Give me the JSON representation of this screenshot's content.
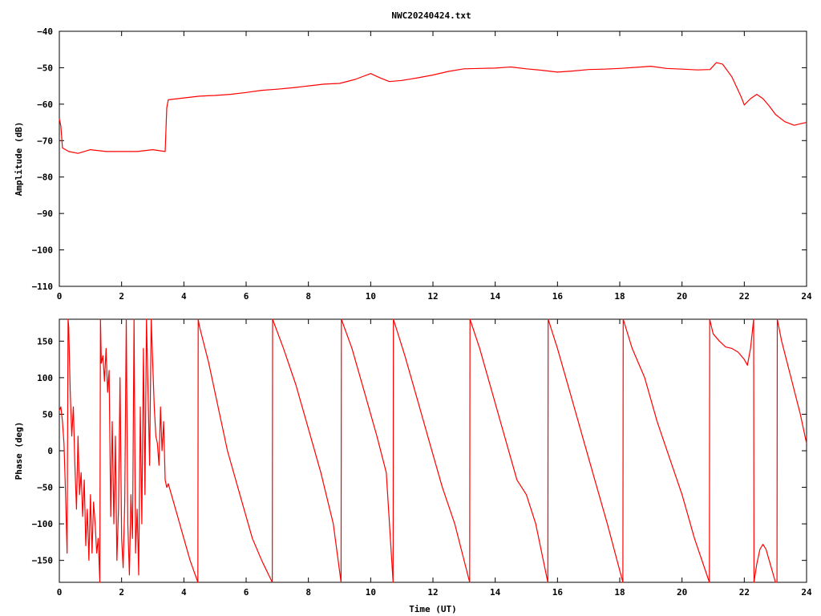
{
  "chart_data": [
    {
      "type": "line",
      "title": "NWC20240424.txt",
      "xlabel": "",
      "ylabel": "Amplitude (dB)",
      "xlim": [
        0,
        24
      ],
      "ylim": [
        -110,
        -40
      ],
      "xticks": [
        0,
        2,
        4,
        6,
        8,
        10,
        12,
        14,
        16,
        18,
        20,
        22,
        24
      ],
      "yticks": [
        -110,
        -100,
        -90,
        -80,
        -70,
        -60,
        -50,
        -40
      ],
      "grid": false,
      "color": "#ff0000",
      "series": [
        {
          "x": [
            0,
            0.05,
            0.1,
            0.3,
            0.6,
            1.0,
            1.5,
            2.0,
            2.5,
            3.0,
            3.4,
            3.45,
            3.5,
            4.0,
            4.5,
            5.0,
            5.5,
            6.0,
            6.5,
            7.0,
            7.5,
            8.0,
            8.5,
            9.0,
            9.5,
            10.0,
            10.3,
            10.6,
            11.0,
            11.5,
            12.0,
            12.5,
            13.0,
            13.5,
            14.0,
            14.5,
            15.0,
            15.5,
            16.0,
            16.5,
            17.0,
            17.5,
            18.0,
            18.5,
            19.0,
            19.5,
            20.0,
            20.5,
            20.9,
            21.1,
            21.3,
            21.6,
            21.9,
            22.0,
            22.2,
            22.4,
            22.6,
            22.8,
            23.0,
            23.3,
            23.6,
            24.0
          ],
          "y": [
            -64,
            -66,
            -72,
            -73,
            -73.5,
            -72.5,
            -73,
            -73,
            -73,
            -72.5,
            -73,
            -61,
            -58.8,
            -58.3,
            -57.8,
            -57.6,
            -57.3,
            -56.8,
            -56.2,
            -55.9,
            -55.5,
            -55,
            -54.5,
            -54.3,
            -53.2,
            -51.6,
            -52.8,
            -53.8,
            -53.5,
            -52.8,
            -52,
            -51,
            -50.3,
            -50.2,
            -50.1,
            -49.8,
            -50.3,
            -50.7,
            -51.2,
            -50.9,
            -50.5,
            -50.4,
            -50.2,
            -49.9,
            -49.6,
            -50.2,
            -50.4,
            -50.6,
            -50.5,
            -48.6,
            -49,
            -52.5,
            -58,
            -60.2,
            -58.5,
            -57.3,
            -58.5,
            -60.5,
            -62.8,
            -64.8,
            -65.8,
            -65
          ]
        }
      ]
    },
    {
      "type": "line",
      "title": "",
      "xlabel": "Time (UT)",
      "ylabel": "Phase (deg)",
      "xlim": [
        0,
        24
      ],
      "ylim": [
        -180,
        180
      ],
      "xticks": [
        0,
        2,
        4,
        6,
        8,
        10,
        12,
        14,
        16,
        18,
        20,
        22,
        24
      ],
      "yticks": [
        -150,
        -100,
        -50,
        0,
        50,
        100,
        150
      ],
      "grid": false,
      "color": "#ff0000",
      "series": [
        {
          "x": [
            0,
            0.05,
            0.1,
            0.15,
            0.2,
            0.25,
            0.28,
            0.3,
            0.35,
            0.4,
            0.45,
            0.5,
            0.55,
            0.6,
            0.65,
            0.7,
            0.75,
            0.8,
            0.85,
            0.9,
            0.95,
            1.0,
            1.05,
            1.1,
            1.15,
            1.2,
            1.25,
            1.3,
            1.32,
            1.35,
            1.4,
            1.45,
            1.5,
            1.55,
            1.6,
            1.65,
            1.7,
            1.75,
            1.8,
            1.85,
            1.9,
            1.95,
            2.0,
            2.05,
            2.1,
            2.15,
            2.2,
            2.25,
            2.3,
            2.35,
            2.4,
            2.45,
            2.5,
            2.55,
            2.6,
            2.65,
            2.7,
            2.75,
            2.8,
            2.85,
            2.9,
            2.95,
            3.0,
            3.05,
            3.1,
            3.15,
            3.2,
            3.25,
            3.3,
            3.35,
            3.4,
            3.45,
            3.5,
            3.6,
            3.8,
            4.0,
            4.2,
            4.45,
            4.46,
            4.5,
            4.8,
            5.1,
            5.4,
            5.8,
            6.2,
            6.5,
            6.84,
            6.85,
            7.2,
            7.6,
            8.0,
            8.4,
            8.8,
            9.05,
            9.06,
            9.4,
            9.8,
            10.2,
            10.5,
            10.72,
            10.73,
            11.1,
            11.5,
            11.9,
            12.3,
            12.7,
            13.18,
            13.19,
            13.5,
            13.9,
            14.3,
            14.7,
            15.0,
            15.3,
            15.69,
            15.7,
            16.0,
            16.4,
            16.8,
            17.2,
            17.6,
            18.1,
            18.11,
            18.4,
            18.8,
            19.2,
            19.6,
            20.0,
            20.4,
            20.88,
            20.89,
            21.0,
            21.2,
            21.4,
            21.6,
            21.8,
            22.0,
            22.1,
            22.2,
            22.3,
            22.31,
            22.4,
            22.5,
            22.6,
            22.7,
            22.8,
            22.9,
            23.0,
            23.05,
            23.06,
            23.2,
            23.5,
            23.8,
            24.0
          ],
          "y": [
            55,
            60,
            40,
            10,
            -60,
            -140,
            180,
            170,
            80,
            20,
            60,
            -20,
            -80,
            20,
            -60,
            -30,
            -90,
            -40,
            -130,
            -80,
            -150,
            -60,
            -140,
            -70,
            -100,
            -140,
            -120,
            -180,
            180,
            120,
            130,
            95,
            140,
            80,
            110,
            -90,
            40,
            -100,
            20,
            -150,
            -80,
            100,
            -120,
            -160,
            -70,
            180,
            -100,
            -170,
            -60,
            -120,
            180,
            -140,
            -80,
            -170,
            60,
            -100,
            140,
            -60,
            180,
            80,
            -20,
            180,
            120,
            60,
            20,
            10,
            -20,
            60,
            0,
            40,
            -40,
            -50,
            -45,
            -60,
            -90,
            -120,
            -150,
            -180,
            180,
            170,
            120,
            60,
            0,
            -60,
            -120,
            -150,
            -180,
            180,
            140,
            90,
            30,
            -30,
            -100,
            -180,
            180,
            140,
            80,
            20,
            -30,
            -180,
            180,
            130,
            70,
            10,
            -50,
            -100,
            -180,
            180,
            140,
            80,
            20,
            -40,
            -60,
            -100,
            -180,
            180,
            140,
            80,
            20,
            -40,
            -100,
            -180,
            180,
            140,
            100,
            40,
            -10,
            -60,
            -120,
            -180,
            180,
            160,
            150,
            142,
            140,
            135,
            125,
            117,
            140,
            180,
            -180,
            -155,
            -135,
            -128,
            -135,
            -150,
            -165,
            -180,
            -180,
            180,
            150,
            100,
            50,
            10
          ]
        }
      ]
    }
  ]
}
